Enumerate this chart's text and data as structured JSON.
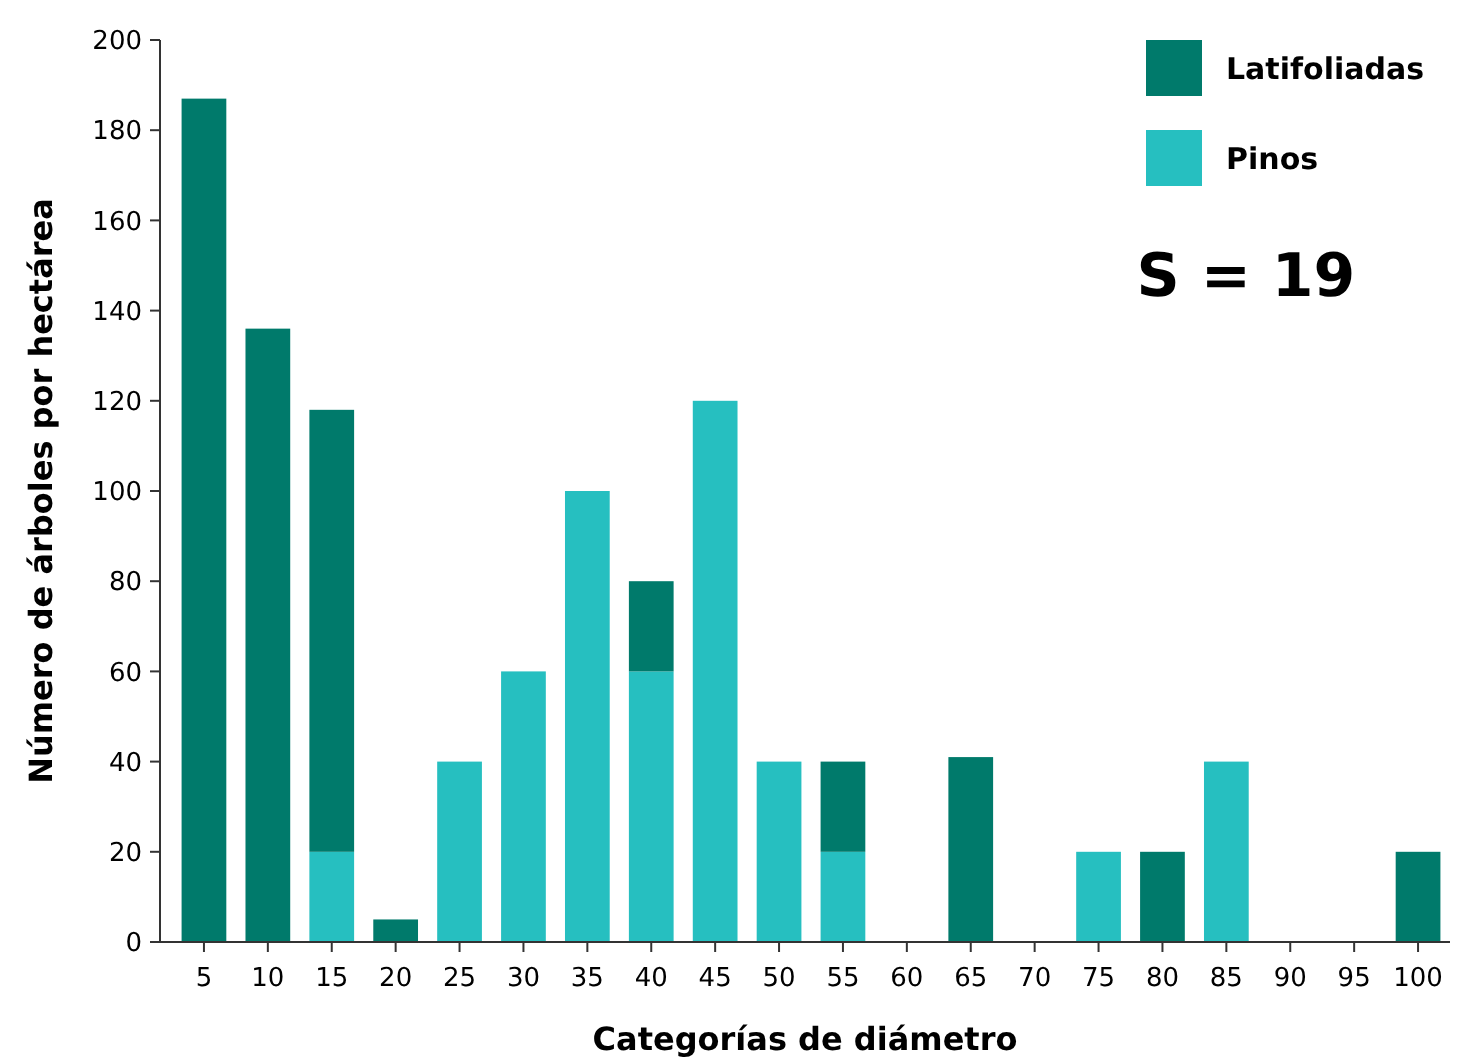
{
  "chart_data": {
    "type": "bar",
    "xlabel": "Categorías de diámetro",
    "ylabel": "Número de árboles por hectárea",
    "categories": [
      "5",
      "10",
      "15",
      "20",
      "25",
      "30",
      "35",
      "40",
      "45",
      "50",
      "55",
      "60",
      "65",
      "70",
      "75",
      "80",
      "85",
      "90",
      "95",
      "100"
    ],
    "stacked": true,
    "ylim": [
      0,
      200
    ],
    "yticks": [
      0,
      20,
      40,
      60,
      80,
      100,
      120,
      140,
      160,
      180,
      200
    ],
    "grid": false,
    "legend": "top right",
    "series": [
      {
        "name": "Pinos",
        "color": "#26bfc0",
        "values": [
          0,
          0,
          20,
          0,
          40,
          60,
          100,
          60,
          120,
          40,
          20,
          0,
          0,
          0,
          20,
          0,
          40,
          0,
          0,
          0
        ]
      },
      {
        "name": "Latifoliadas",
        "color": "#007a6b",
        "values": [
          187,
          136,
          98,
          5,
          0,
          0,
          0,
          20,
          0,
          0,
          20,
          0,
          41,
          0,
          0,
          20,
          0,
          0,
          0,
          20
        ]
      }
    ],
    "annotations": [
      "S = 19"
    ]
  }
}
